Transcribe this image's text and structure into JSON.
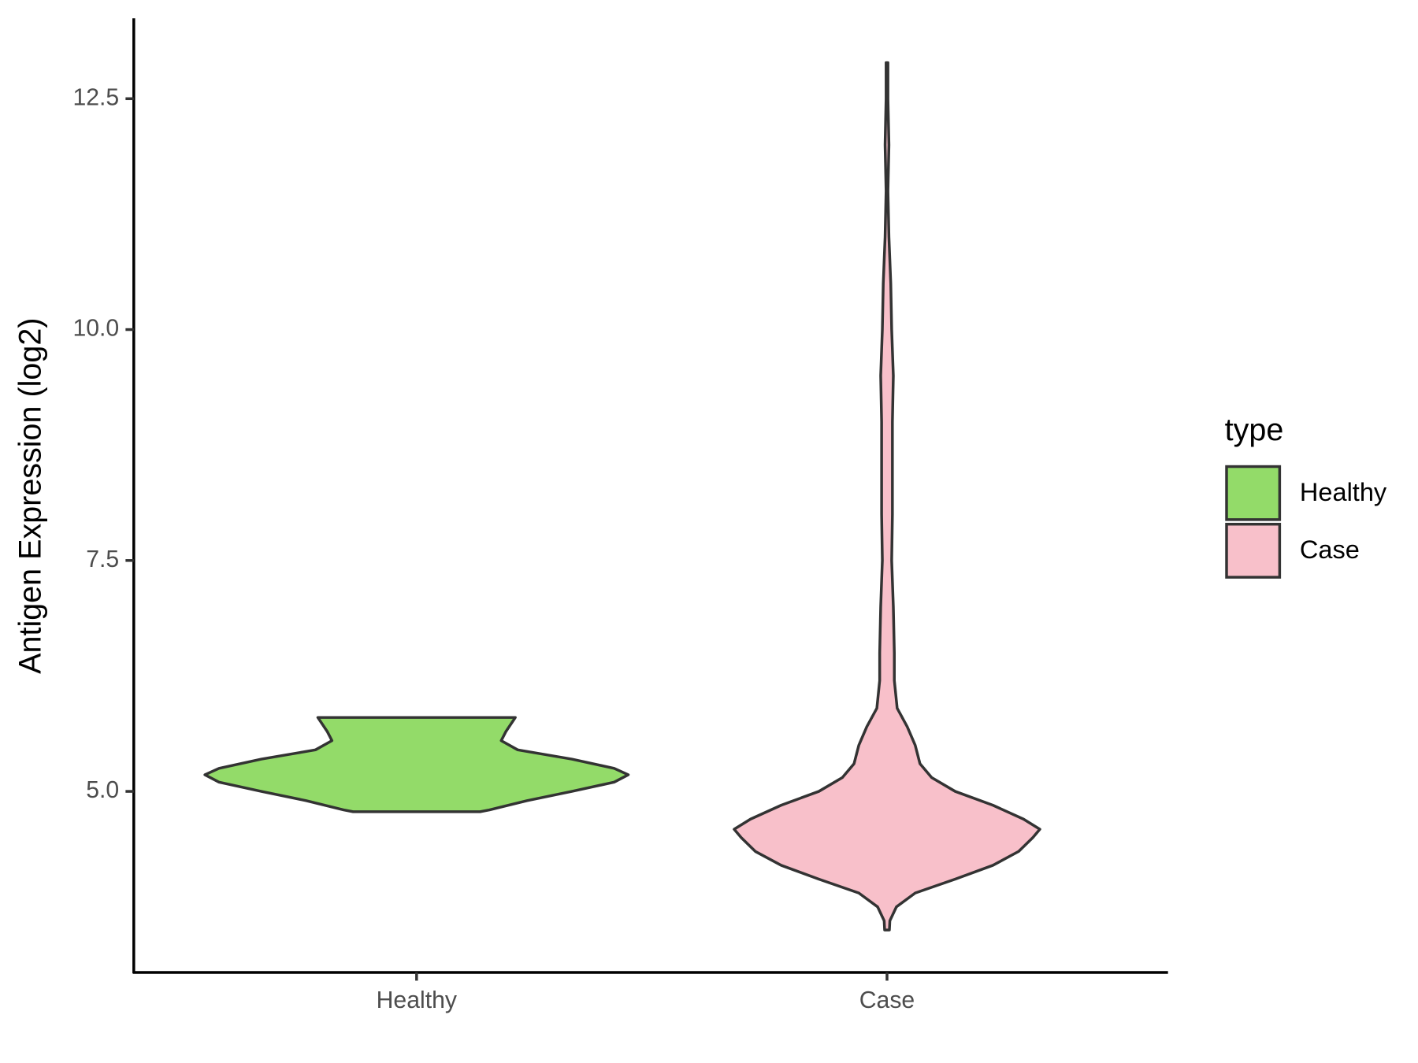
{
  "chart_data": {
    "type": "violin",
    "y_label": "Antigen Expression (log2)",
    "categories": [
      "Healthy",
      "Case"
    ],
    "legend_title": "type",
    "legend_position": "right",
    "ylim": [
      3.04,
      13.37
    ],
    "yticks": [
      {
        "value": 5.0,
        "label": "5.0"
      },
      7.5,
      {
        "value": 10.0,
        "label": "10.0"
      },
      12.5
    ],
    "series": [
      {
        "name": "Healthy",
        "color": "#93db69",
        "y": [
          4.78,
          4.8,
          4.9,
          5.0,
          5.1,
          5.18,
          5.25,
          5.35,
          5.45,
          5.55,
          5.65,
          5.8
        ],
        "width": [
          0.27,
          0.31,
          0.47,
          0.66,
          0.84,
          0.9,
          0.84,
          0.66,
          0.43,
          0.36,
          0.38,
          0.42
        ]
      },
      {
        "name": "Case",
        "color": "#f8c0ca",
        "y": [
          3.5,
          3.6,
          3.75,
          3.9,
          4.05,
          4.2,
          4.35,
          4.5,
          4.59,
          4.7,
          4.85,
          5.0,
          5.15,
          5.3,
          5.5,
          5.7,
          5.9,
          6.2,
          6.5,
          7.0,
          7.5,
          8.0,
          8.5,
          9.0,
          9.5,
          10.0,
          10.5,
          11.0,
          11.5,
          12.0,
          12.5,
          12.89
        ],
        "width": [
          0.01,
          0.012,
          0.04,
          0.12,
          0.29,
          0.45,
          0.56,
          0.62,
          0.65,
          0.58,
          0.45,
          0.29,
          0.19,
          0.14,
          0.12,
          0.086,
          0.043,
          0.031,
          0.031,
          0.027,
          0.02,
          0.023,
          0.023,
          0.023,
          0.027,
          0.02,
          0.016,
          0.008,
          0.004,
          0.008,
          0.004,
          0.004
        ]
      }
    ]
  }
}
